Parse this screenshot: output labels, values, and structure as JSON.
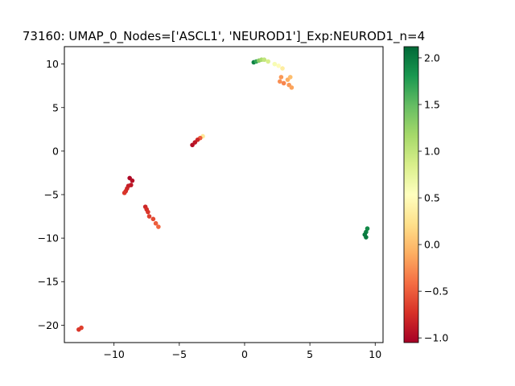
{
  "chart_data": {
    "type": "scatter",
    "title": "73160: UMAP_0_Nodes=['ASCL1', 'NEUROD1']_Exp:NEUROD1_n=4",
    "xlabel": "",
    "ylabel": "",
    "xlim": [
      -13.8,
      10.6
    ],
    "ylim": [
      -22.0,
      12.0
    ],
    "xticks": [
      -10,
      -5,
      0,
      5,
      10
    ],
    "yticks": [
      -20,
      -15,
      -10,
      -5,
      0,
      5,
      10
    ],
    "grid": false,
    "colorbar": {
      "colormap": "RdYlGn",
      "min": -1.05,
      "max": 2.12,
      "ticks": [
        -1.0,
        -0.5,
        0.0,
        0.5,
        1.0,
        1.5,
        2.0
      ],
      "tick_labels": [
        "−1.0",
        "−0.5",
        "0.0",
        "0.5",
        "1.0",
        "1.5",
        "2.0"
      ]
    },
    "points": [
      {
        "x": 0.7,
        "y": 10.2,
        "c": 1.95
      },
      {
        "x": 0.9,
        "y": 10.3,
        "c": 1.7
      },
      {
        "x": 1.1,
        "y": 10.4,
        "c": 1.3
      },
      {
        "x": 1.3,
        "y": 10.5,
        "c": 1.15
      },
      {
        "x": 1.5,
        "y": 10.5,
        "c": 1.0
      },
      {
        "x": 1.8,
        "y": 10.3,
        "c": 0.85
      },
      {
        "x": 2.3,
        "y": 10.0,
        "c": 0.6
      },
      {
        "x": 2.6,
        "y": 9.8,
        "c": 0.5
      },
      {
        "x": 2.9,
        "y": 9.5,
        "c": 0.35
      },
      {
        "x": 2.8,
        "y": 8.5,
        "c": -0.2
      },
      {
        "x": 2.7,
        "y": 8.0,
        "c": -0.25
      },
      {
        "x": 3.0,
        "y": 7.8,
        "c": -0.3
      },
      {
        "x": 3.3,
        "y": 8.2,
        "c": -0.1
      },
      {
        "x": 3.5,
        "y": 8.5,
        "c": 0.0
      },
      {
        "x": 3.4,
        "y": 7.6,
        "c": -0.2
      },
      {
        "x": 3.6,
        "y": 7.3,
        "c": -0.15
      },
      {
        "x": -3.2,
        "y": 1.7,
        "c": 0.3
      },
      {
        "x": -3.4,
        "y": 1.5,
        "c": -0.5
      },
      {
        "x": -3.6,
        "y": 1.3,
        "c": -0.8
      },
      {
        "x": -3.8,
        "y": 1.0,
        "c": -0.9
      },
      {
        "x": -4.0,
        "y": 0.7,
        "c": -0.95
      },
      {
        "x": -8.8,
        "y": -3.1,
        "c": -1.0
      },
      {
        "x": -8.6,
        "y": -3.4,
        "c": -0.95
      },
      {
        "x": -8.7,
        "y": -3.9,
        "c": -0.9
      },
      {
        "x": -8.9,
        "y": -4.0,
        "c": -0.85
      },
      {
        "x": -9.0,
        "y": -4.3,
        "c": -0.8
      },
      {
        "x": -9.1,
        "y": -4.6,
        "c": -0.75
      },
      {
        "x": -9.2,
        "y": -4.8,
        "c": -0.7
      },
      {
        "x": -7.6,
        "y": -6.4,
        "c": -0.8
      },
      {
        "x": -7.5,
        "y": -6.7,
        "c": -0.75
      },
      {
        "x": -7.4,
        "y": -7.0,
        "c": -0.7
      },
      {
        "x": -7.3,
        "y": -7.5,
        "c": -0.65
      },
      {
        "x": -7.0,
        "y": -7.8,
        "c": -0.6
      },
      {
        "x": -6.8,
        "y": -8.3,
        "c": -0.5
      },
      {
        "x": -6.6,
        "y": -8.7,
        "c": -0.45
      },
      {
        "x": 9.4,
        "y": -8.9,
        "c": 1.9
      },
      {
        "x": 9.3,
        "y": -9.3,
        "c": 1.95
      },
      {
        "x": 9.2,
        "y": -9.6,
        "c": 2.0
      },
      {
        "x": 9.3,
        "y": -9.9,
        "c": 2.0
      },
      {
        "x": -12.5,
        "y": -20.3,
        "c": -0.65
      },
      {
        "x": -12.7,
        "y": -20.5,
        "c": -0.7
      }
    ]
  }
}
